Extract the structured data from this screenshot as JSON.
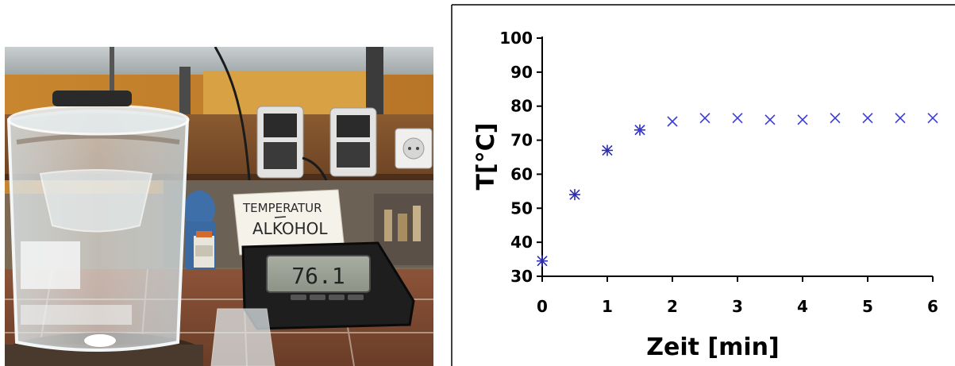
{
  "photo": {
    "label_line1": "TEMPERATUR",
    "label_line2": "ALKOHOL",
    "display_reading": "76.1"
  },
  "chart_data": {
    "type": "scatter",
    "title": "",
    "xlabel": "Zeit [min]",
    "ylabel": "T[°C]",
    "xlim": [
      0,
      6
    ],
    "ylim": [
      30,
      100
    ],
    "xticks": [
      0,
      1,
      2,
      3,
      4,
      5,
      6
    ],
    "yticks": [
      30,
      40,
      50,
      60,
      70,
      80,
      90,
      100
    ],
    "grid": false,
    "series": [
      {
        "marker": "asterisk",
        "color": "#2d2db0",
        "x": [
          0,
          0.5,
          1,
          1.5
        ],
        "y": [
          34.5,
          54,
          67,
          73
        ]
      },
      {
        "marker": "x",
        "color": "#3a3ae0",
        "x": [
          1.5,
          2,
          2.5,
          3,
          3.5,
          4,
          4.5,
          5,
          5.5,
          6
        ],
        "y": [
          73,
          75.5,
          76.5,
          76.5,
          76,
          76,
          76.5,
          76.5,
          76.5,
          76.5
        ]
      }
    ]
  }
}
